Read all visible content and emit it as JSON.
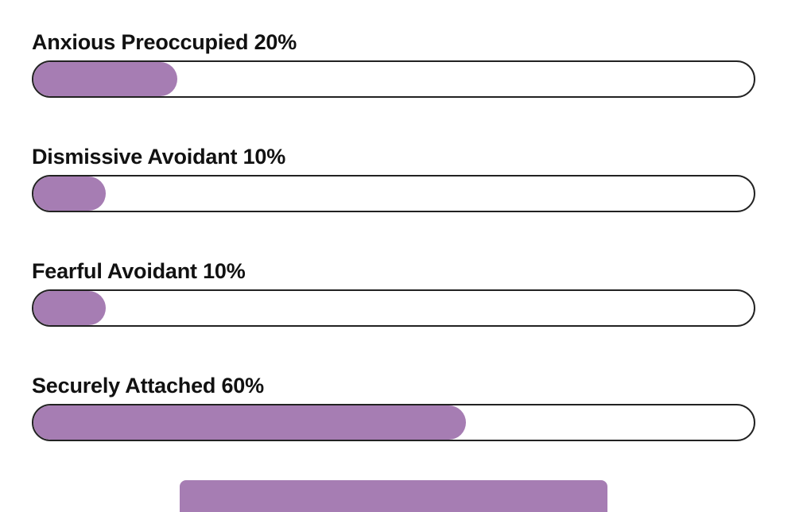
{
  "results": [
    {
      "label": "Anxious Preoccupied 20%",
      "value": 0.2
    },
    {
      "label": "Dismissive Avoidant 10%",
      "value": 0.1
    },
    {
      "label": "Fearful Avoidant 10%",
      "value": 0.1
    },
    {
      "label": "Securely Attached 60%",
      "value": 0.6
    }
  ],
  "colors": {
    "fill": "#a67db3",
    "track_border": "#222222",
    "text": "#111111"
  }
}
